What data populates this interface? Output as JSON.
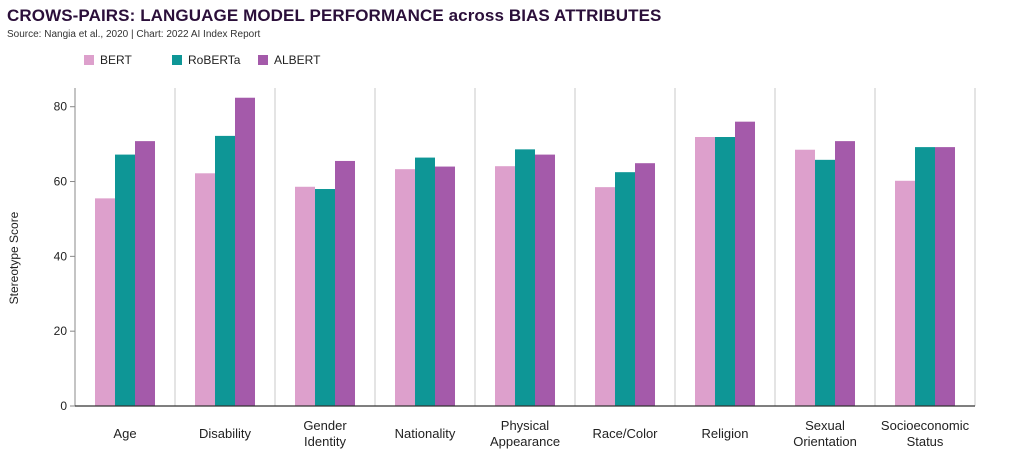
{
  "title": "CROWS-PAIRS: LANGUAGE MODEL PERFORMANCE across BIAS ATTRIBUTES",
  "subtitle": "Source: Nangia et al., 2020 | Chart: 2022 AI Index Report",
  "colors": {
    "BERT": "#dda0cc",
    "RoBERTa": "#0e9696",
    "ALBERT": "#a45aaa"
  },
  "chart_data": {
    "type": "bar",
    "ylabel": "Stereotype Score",
    "ylim": [
      0,
      85
    ],
    "yticks": [
      0,
      20,
      40,
      60,
      80
    ],
    "grid": "vertical separators between categories",
    "legend_position": "top-left",
    "categories": [
      [
        "Age"
      ],
      [
        "Disability"
      ],
      [
        "Gender",
        "Identity"
      ],
      [
        "Nationality"
      ],
      [
        "Physical",
        "Appearance"
      ],
      [
        "Race/Color"
      ],
      [
        "Religion"
      ],
      [
        "Sexual",
        "Orientation"
      ],
      [
        "Socioeconomic",
        "Status"
      ]
    ],
    "series": [
      {
        "name": "BERT",
        "values": [
          55.5,
          62.2,
          58.6,
          63.3,
          64.1,
          58.5,
          71.9,
          68.5,
          60.2
        ]
      },
      {
        "name": "RoBERTa",
        "values": [
          67.2,
          72.2,
          58.0,
          66.4,
          68.6,
          62.5,
          71.9,
          65.8,
          69.2
        ]
      },
      {
        "name": "ALBERT",
        "values": [
          70.8,
          82.4,
          65.5,
          64.0,
          67.2,
          64.9,
          76.0,
          70.8,
          69.2
        ]
      }
    ]
  }
}
